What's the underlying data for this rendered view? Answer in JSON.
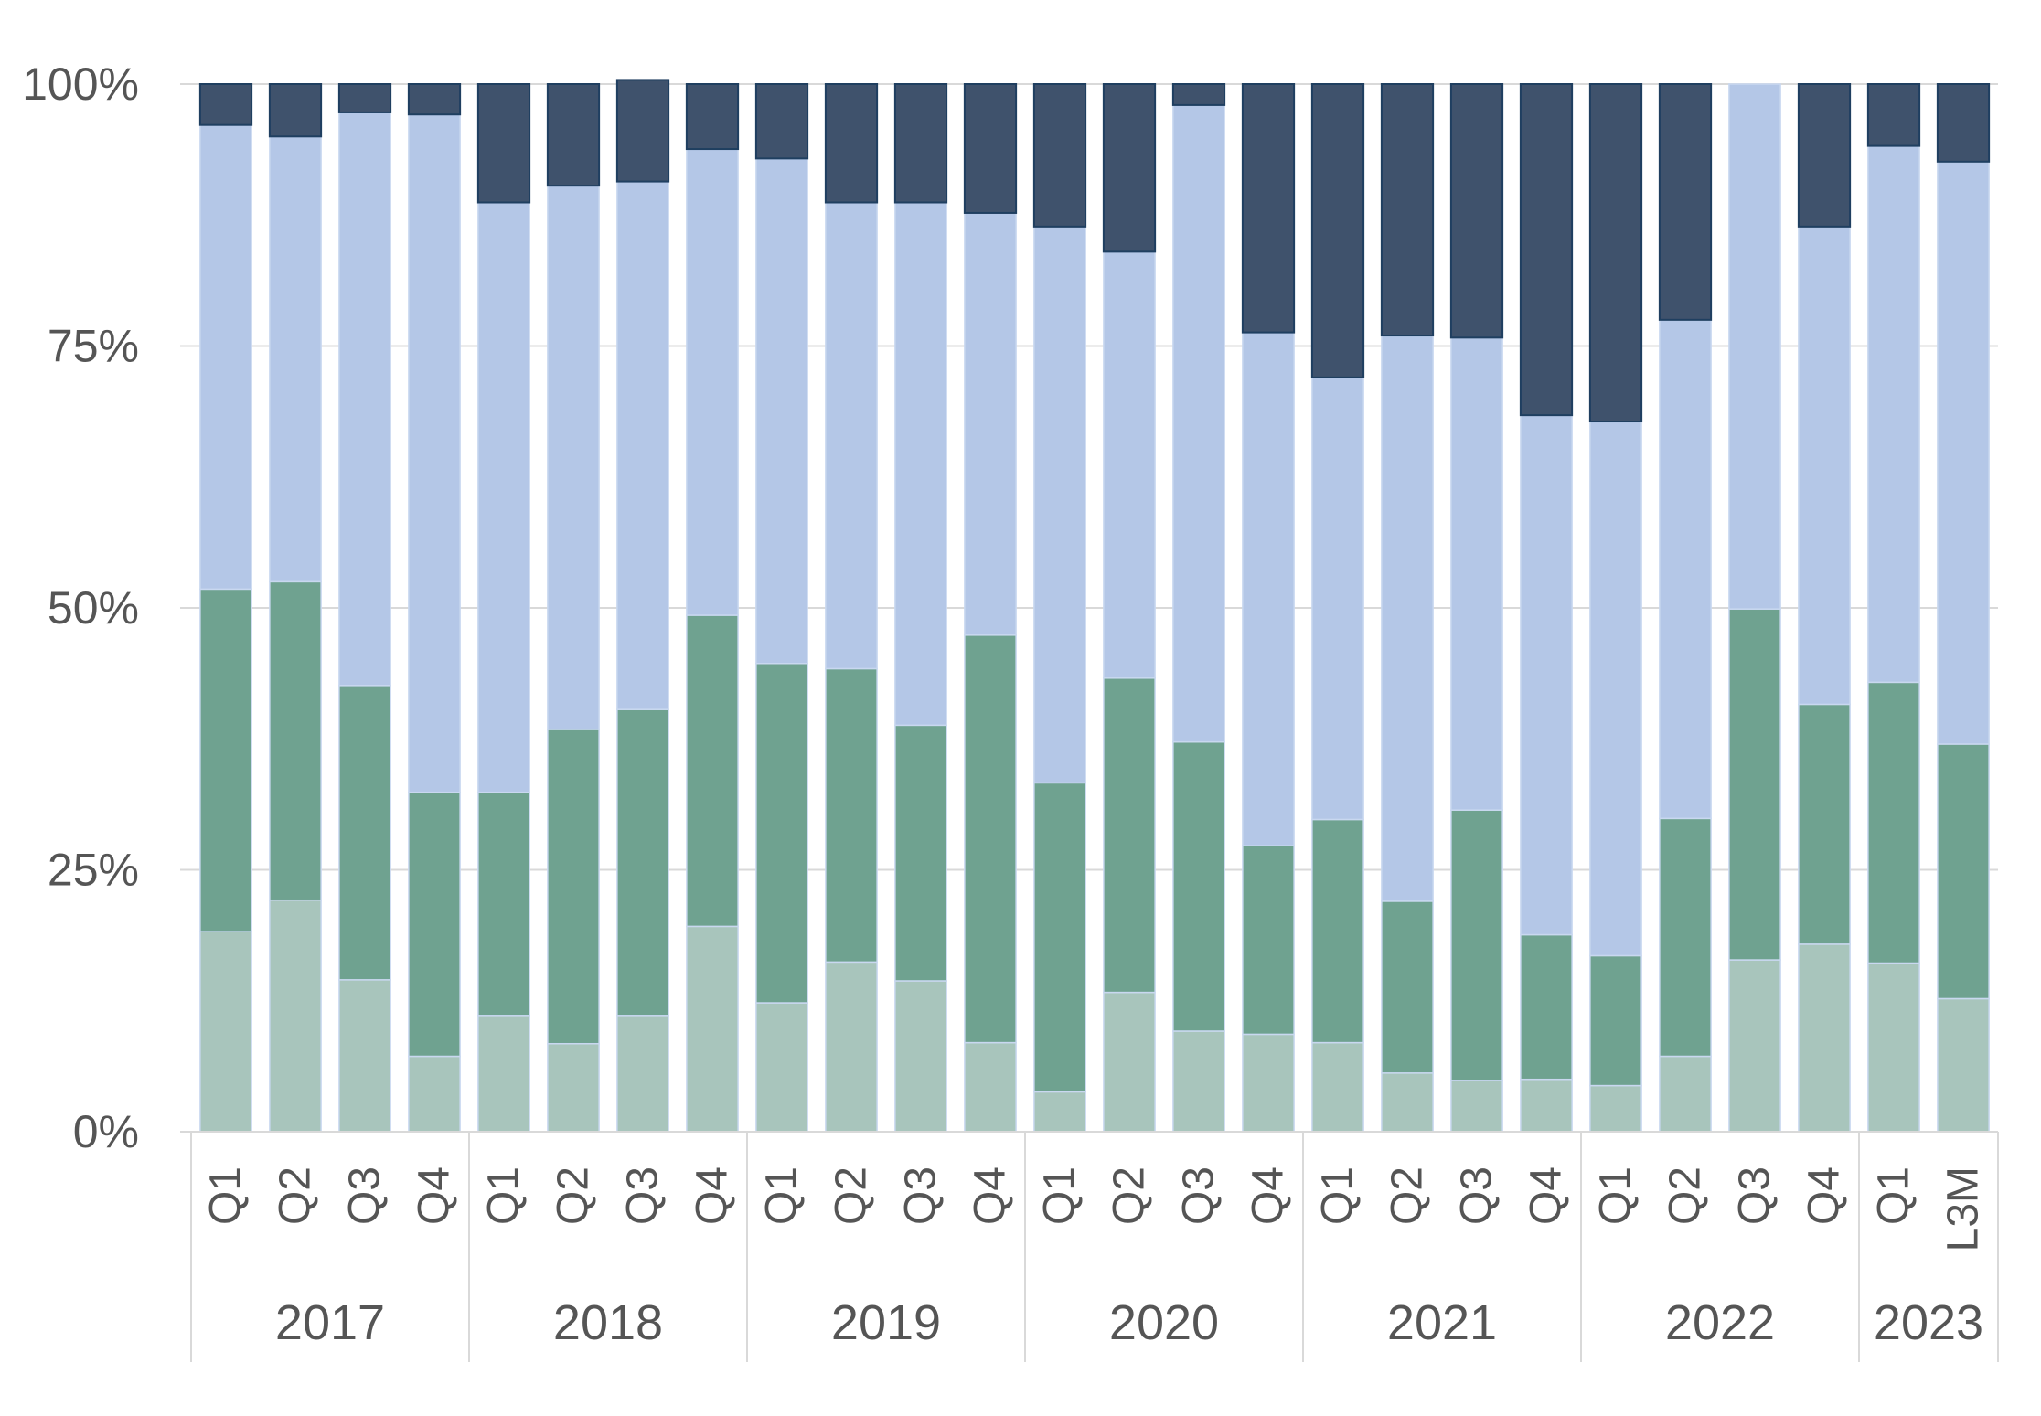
{
  "chart_data": {
    "type": "bar",
    "stacked": true,
    "percent": true,
    "title": "",
    "xlabel": "",
    "ylabel": "",
    "ylim": [
      0,
      100
    ],
    "yticks": [
      "0%",
      "25%",
      "50%",
      "75%",
      "100%"
    ],
    "grid": true,
    "legend": "none",
    "categories": [
      "Q1",
      "Q2",
      "Q3",
      "Q4",
      "Q1",
      "Q2",
      "Q3",
      "Q4",
      "Q1",
      "Q2",
      "Q3",
      "Q4",
      "Q1",
      "Q2",
      "Q3",
      "Q4",
      "Q1",
      "Q2",
      "Q3",
      "Q4",
      "Q1",
      "Q2",
      "Q3",
      "Q4",
      "Q1",
      "L3M"
    ],
    "groups": [
      {
        "label": "2017",
        "count": 4
      },
      {
        "label": "2018",
        "count": 4
      },
      {
        "label": "2019",
        "count": 4
      },
      {
        "label": "2020",
        "count": 4
      },
      {
        "label": "2021",
        "count": 4
      },
      {
        "label": "2022",
        "count": 4
      },
      {
        "label": "2023",
        "count": 2
      }
    ],
    "series": [
      {
        "color": "#A8C5BC",
        "values": [
          19.1,
          22.1,
          14.5,
          7.2,
          11.1,
          8.4,
          11.1,
          19.6,
          12.3,
          16.2,
          14.4,
          8.5,
          3.8,
          13.3,
          9.6,
          9.3,
          8.5,
          5.6,
          4.9,
          5.0,
          4.4,
          7.2,
          16.4,
          17.9,
          16.1,
          12.7
        ]
      },
      {
        "color": "#6FA290",
        "values": [
          32.7,
          30.4,
          28.1,
          25.2,
          21.3,
          30.0,
          29.2,
          29.7,
          32.4,
          28.0,
          24.4,
          38.9,
          29.5,
          30.0,
          27.6,
          18.0,
          21.3,
          16.4,
          25.8,
          13.8,
          12.4,
          22.7,
          33.5,
          22.9,
          26.8,
          24.3
        ]
      },
      {
        "color": "#B4C7E7",
        "values": [
          44.3,
          42.5,
          54.7,
          64.7,
          56.3,
          51.9,
          50.4,
          44.5,
          48.2,
          44.5,
          49.9,
          40.3,
          53.1,
          40.7,
          60.8,
          49.0,
          42.2,
          54.0,
          45.1,
          49.6,
          51.0,
          47.6,
          50.1,
          45.6,
          51.2,
          55.6
        ]
      },
      {
        "color": "#3F526C",
        "values": [
          3.9,
          5.0,
          2.7,
          2.9,
          11.3,
          9.7,
          9.7,
          6.2,
          7.1,
          11.3,
          11.3,
          12.3,
          13.6,
          16.0,
          2.0,
          23.7,
          28.0,
          24.0,
          24.2,
          31.6,
          32.2,
          22.5,
          0.0,
          13.6,
          5.9,
          7.4
        ]
      }
    ]
  }
}
